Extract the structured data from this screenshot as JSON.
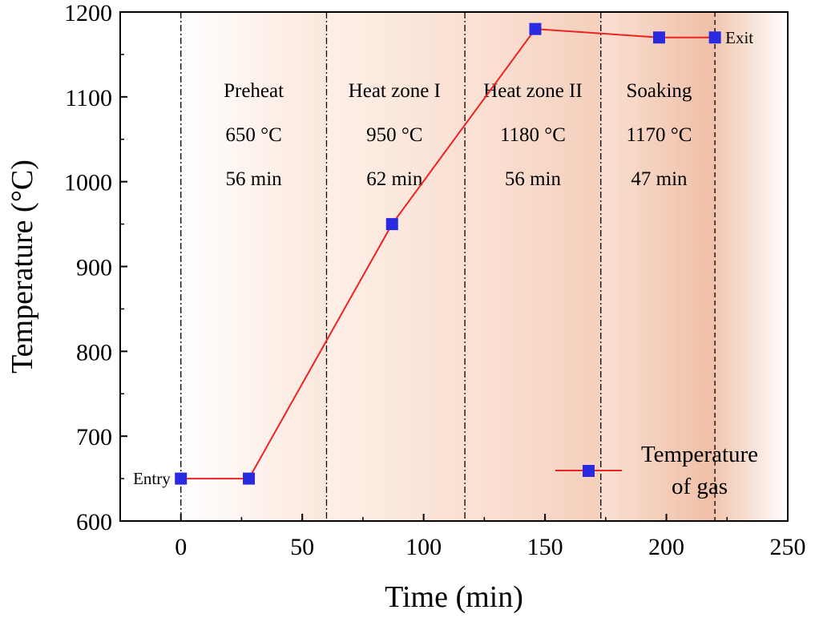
{
  "chart_data": {
    "type": "line",
    "xlabel": "Time (min)",
    "ylabel": "Temperature (°C)",
    "xlim": [
      -25,
      250
    ],
    "ylim": [
      600,
      1200
    ],
    "xticks": [
      0,
      50,
      100,
      150,
      200,
      250
    ],
    "yticks": [
      600,
      700,
      800,
      900,
      1000,
      1100,
      1200
    ],
    "grid": false,
    "legend": {
      "position": "bottom-right",
      "entries": [
        "Temperature",
        "of gas"
      ]
    },
    "series": [
      {
        "name": "Temperature of gas",
        "color": "#ee2222",
        "marker_color": "#2a2ae0",
        "x": [
          0,
          28,
          87,
          146,
          197,
          220
        ],
        "y": [
          650,
          650,
          950,
          1180,
          1170,
          1170
        ]
      }
    ],
    "zone_boundaries": [
      0,
      60,
      117,
      173,
      220
    ],
    "zones": [
      {
        "name": "Preheat",
        "temp": "650 °C",
        "time": "56 min",
        "label_x": 30
      },
      {
        "name": "Heat zone I",
        "temp": "950 °C",
        "time": "62 min",
        "label_x": 88
      },
      {
        "name": "Heat zone II",
        "temp": "1180 °C",
        "time": "56 min",
        "label_x": 145
      },
      {
        "name": "Soaking",
        "temp": "1170 °C",
        "time": "47 min",
        "label_x": 197
      }
    ],
    "annotations": [
      {
        "text": "Entry",
        "x": 0,
        "y": 650
      },
      {
        "text": "Exit",
        "x": 220,
        "y": 1170
      }
    ]
  }
}
